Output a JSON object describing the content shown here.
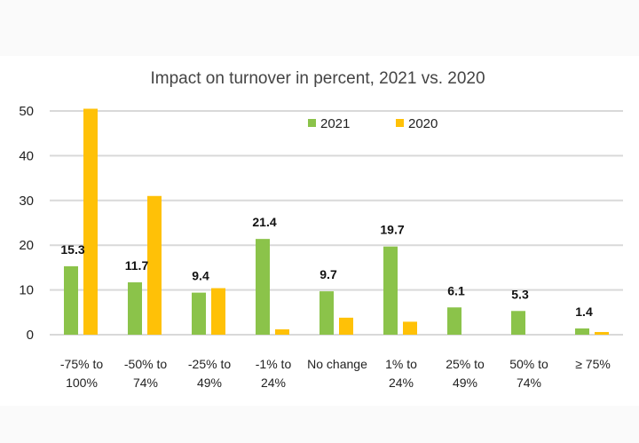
{
  "chart_data": {
    "type": "bar",
    "title": "Impact on turnover in percent, 2021 vs. 2020",
    "xlabel": "",
    "ylabel": "",
    "ylim": [
      0,
      50
    ],
    "yticks": [
      0,
      10,
      20,
      30,
      40,
      50
    ],
    "grid": true,
    "legend_position": "top-center",
    "categories": [
      [
        "-75% to",
        "100%"
      ],
      [
        "-50% to",
        "74%"
      ],
      [
        "-25% to",
        "49%"
      ],
      [
        "-1% to",
        "24%"
      ],
      [
        "No change"
      ],
      [
        "1% to",
        "24%"
      ],
      [
        "25% to",
        "49%"
      ],
      [
        "50% to",
        "74%"
      ],
      [
        "≥ 75%"
      ]
    ],
    "series": [
      {
        "name": "2021",
        "color": "#8bc34a",
        "values": [
          15.3,
          11.7,
          9.4,
          21.4,
          9.7,
          19.7,
          6.1,
          5.3,
          1.4
        ],
        "data_labels": [
          "15.3",
          "11.7",
          "9.4",
          "21.4",
          "9.7",
          "19.7",
          "6.1",
          "5.3",
          "1.4"
        ]
      },
      {
        "name": "2020",
        "color": "#ffc107",
        "values": [
          50.5,
          31.0,
          10.4,
          1.2,
          3.8,
          2.9,
          0,
          0,
          0.6
        ],
        "data_labels": []
      }
    ]
  }
}
